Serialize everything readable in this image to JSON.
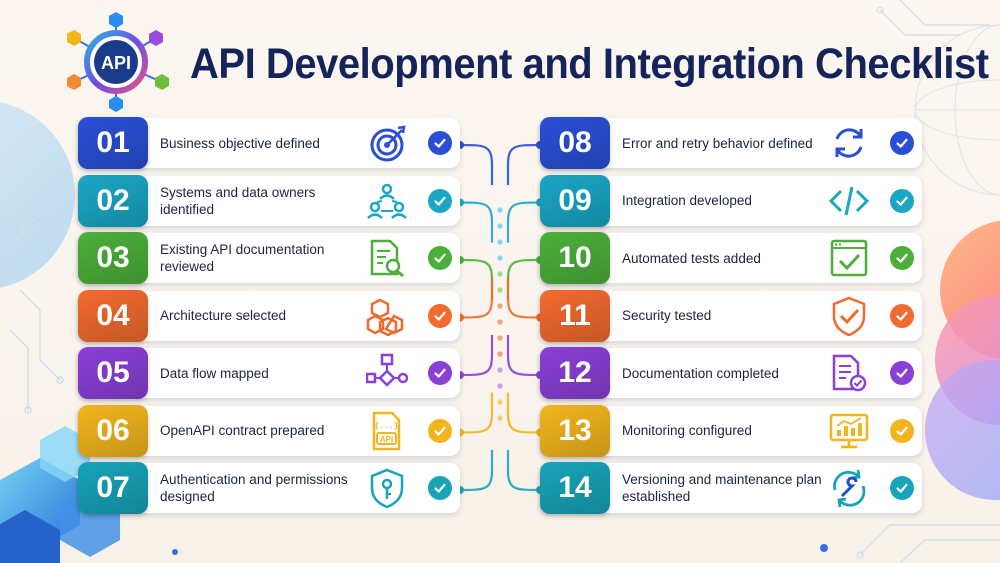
{
  "header": {
    "logo_text": "API",
    "title": "API Development and Integration Checklist"
  },
  "colors": {
    "blue": "#2a4fd6",
    "teal": "#1aa6c4",
    "green": "#4caf3a",
    "orange": "#f26a2e",
    "purple": "#8a3fd6",
    "yellow": "#f2b51d",
    "cyan": "#17a3b8"
  },
  "left_items": [
    {
      "number": "01",
      "label": "Business objective defined",
      "icon": "target-icon",
      "color": "blue"
    },
    {
      "number": "02",
      "label": "Systems and data owners identified",
      "icon": "people-network-icon",
      "color": "teal"
    },
    {
      "number": "03",
      "label": "Existing API documentation reviewed",
      "icon": "document-search-icon",
      "color": "green"
    },
    {
      "number": "04",
      "label": "Architecture selected",
      "icon": "blocks-icon",
      "color": "orange"
    },
    {
      "number": "05",
      "label": "Data flow mapped",
      "icon": "flowchart-icon",
      "color": "purple"
    },
    {
      "number": "06",
      "label": "OpenAPI contract prepared",
      "icon": "api-file-icon",
      "color": "yellow"
    },
    {
      "number": "07",
      "label": "Authentication and permissions designed",
      "icon": "shield-key-icon",
      "color": "cyan"
    }
  ],
  "right_items": [
    {
      "number": "08",
      "label": "Error and retry behavior defined",
      "icon": "refresh-icon",
      "color": "blue"
    },
    {
      "number": "09",
      "label": "Integration developed",
      "icon": "code-icon",
      "color": "teal"
    },
    {
      "number": "10",
      "label": "Automated tests added",
      "icon": "test-window-icon",
      "color": "green"
    },
    {
      "number": "11",
      "label": "Security tested",
      "icon": "shield-check-icon",
      "color": "orange"
    },
    {
      "number": "12",
      "label": "Documentation completed",
      "icon": "document-check-icon",
      "color": "purple"
    },
    {
      "number": "13",
      "label": "Monitoring configured",
      "icon": "monitor-chart-icon",
      "color": "yellow"
    },
    {
      "number": "14",
      "label": "Versioning and maintenance plan established",
      "icon": "sync-wrench-icon",
      "color": "cyan"
    }
  ]
}
